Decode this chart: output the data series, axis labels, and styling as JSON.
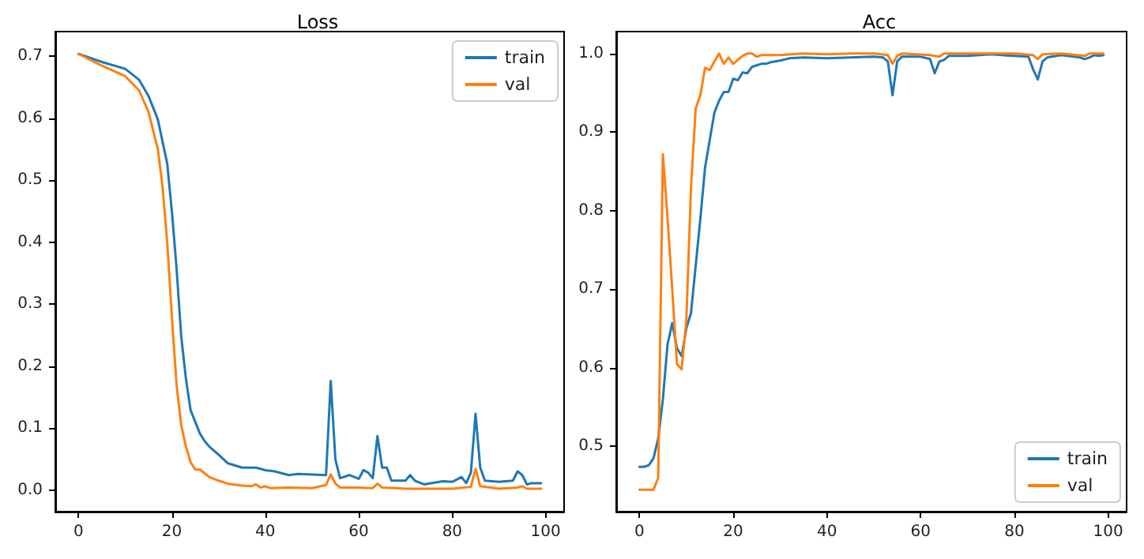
{
  "chart_data": [
    {
      "type": "line",
      "title": "Loss",
      "xlim": [
        -4.95,
        103.95
      ],
      "ylim": [
        -0.035,
        0.74
      ],
      "xticks": [
        0,
        20,
        40,
        60,
        80,
        100
      ],
      "yticks": [
        {
          "value": 0,
          "label": "0.0"
        },
        0.1,
        0.2,
        0.3,
        0.4,
        0.5,
        0.6,
        0.7
      ],
      "grid": false,
      "legend": "top right",
      "marker": "none",
      "line_style": "solid",
      "series": [
        {
          "name": "train",
          "color": "#1f77b4",
          "x": [
            0,
            5,
            10,
            13,
            15,
            17,
            19,
            20,
            21,
            22,
            23,
            24,
            26,
            27,
            28,
            30,
            32,
            35,
            38,
            40,
            42,
            45,
            47,
            50,
            53,
            54,
            55,
            56,
            58,
            60,
            61,
            62,
            63,
            64,
            65,
            66,
            67,
            70,
            71,
            72,
            74,
            78,
            80,
            82,
            83,
            84,
            85,
            86,
            87,
            90,
            93,
            94,
            95,
            96,
            97,
            99
          ],
          "values": [
            0.704,
            0.691,
            0.68,
            0.662,
            0.636,
            0.598,
            0.527,
            0.45,
            0.358,
            0.248,
            0.18,
            0.129,
            0.091,
            0.079,
            0.07,
            0.057,
            0.043,
            0.036,
            0.036,
            0.032,
            0.03,
            0.024,
            0.026,
            0.025,
            0.024,
            0.176,
            0.049,
            0.019,
            0.024,
            0.018,
            0.032,
            0.028,
            0.019,
            0.087,
            0.036,
            0.036,
            0.015,
            0.015,
            0.024,
            0.015,
            0.009,
            0.014,
            0.013,
            0.021,
            0.011,
            0.028,
            0.123,
            0.036,
            0.015,
            0.013,
            0.015,
            0.03,
            0.024,
            0.009,
            0.011,
            0.011
          ]
        },
        {
          "name": "val",
          "color": "#ff7f0e",
          "x": [
            0,
            5,
            10,
            13,
            15,
            17,
            18,
            19,
            20,
            21,
            22,
            23,
            24,
            25,
            26,
            27,
            28,
            30,
            32,
            35,
            37,
            38,
            39,
            40,
            41,
            45,
            50,
            53,
            54,
            55,
            56,
            60,
            63,
            64,
            65,
            70,
            80,
            84,
            85,
            86,
            90,
            94,
            95,
            96,
            99
          ],
          "values": [
            0.704,
            0.685,
            0.668,
            0.645,
            0.61,
            0.55,
            0.49,
            0.4,
            0.28,
            0.17,
            0.105,
            0.07,
            0.045,
            0.033,
            0.033,
            0.027,
            0.021,
            0.015,
            0.01,
            0.007,
            0.006,
            0.009,
            0.004,
            0.006,
            0.003,
            0.004,
            0.003,
            0.008,
            0.025,
            0.01,
            0.004,
            0.004,
            0.003,
            0.01,
            0.004,
            0.002,
            0.002,
            0.005,
            0.034,
            0.006,
            0.002,
            0.004,
            0.006,
            0.002,
            0.002
          ]
        }
      ]
    },
    {
      "type": "line",
      "title": "Acc",
      "xlim": [
        -4.95,
        103.95
      ],
      "ylim": [
        0.417,
        1.028
      ],
      "xticks": [
        0,
        20,
        40,
        60,
        80,
        100
      ],
      "yticks": [
        0.5,
        0.6,
        0.7,
        0.8,
        0.9,
        {
          "value": 1,
          "label": "1.0"
        }
      ],
      "grid": false,
      "legend": "bottom right",
      "marker": "none",
      "line_style": "solid",
      "series": [
        {
          "name": "train",
          "color": "#1f77b4",
          "x": [
            0,
            1,
            2,
            3,
            4,
            5,
            6,
            7,
            8,
            9,
            10,
            11,
            12,
            13,
            14,
            15,
            16,
            17,
            18,
            19,
            20,
            21,
            22,
            23,
            24,
            25,
            26,
            27,
            28,
            30,
            32,
            35,
            40,
            45,
            50,
            52,
            53,
            54,
            55,
            56,
            60,
            62,
            63,
            64,
            65,
            66,
            70,
            75,
            80,
            83,
            84,
            85,
            86,
            87,
            90,
            94,
            95,
            96,
            97,
            98,
            99
          ],
          "values": [
            0.474,
            0.474,
            0.476,
            0.485,
            0.51,
            0.56,
            0.63,
            0.657,
            0.625,
            0.615,
            0.65,
            0.67,
            0.73,
            0.79,
            0.855,
            0.89,
            0.925,
            0.94,
            0.951,
            0.951,
            0.968,
            0.966,
            0.976,
            0.975,
            0.983,
            0.985,
            0.987,
            0.987,
            0.989,
            0.991,
            0.994,
            0.995,
            0.994,
            0.995,
            0.996,
            0.995,
            0.99,
            0.947,
            0.99,
            0.996,
            0.996,
            0.993,
            0.975,
            0.99,
            0.992,
            0.997,
            0.997,
            0.999,
            0.997,
            0.996,
            0.98,
            0.967,
            0.99,
            0.995,
            0.998,
            0.995,
            0.993,
            0.995,
            0.998,
            0.997,
            0.998
          ]
        },
        {
          "name": "val",
          "color": "#ff7f0e",
          "x": [
            0,
            1,
            2,
            3,
            4,
            5,
            6,
            7,
            8,
            9,
            10,
            11,
            12,
            13,
            14,
            15,
            16,
            17,
            18,
            19,
            20,
            21,
            22,
            23,
            24,
            25,
            26,
            30,
            35,
            40,
            45,
            50,
            53,
            54,
            55,
            56,
            62,
            64,
            65,
            75,
            80,
            84,
            85,
            86,
            90,
            95,
            96,
            99
          ],
          "values": [
            0.445,
            0.445,
            0.445,
            0.445,
            0.46,
            0.872,
            0.79,
            0.7,
            0.605,
            0.598,
            0.66,
            0.83,
            0.93,
            0.947,
            0.982,
            0.979,
            0.99,
            1.0,
            0.987,
            0.995,
            0.987,
            0.992,
            0.997,
            1.0,
            1.0,
            0.996,
            0.998,
            0.998,
            1.0,
            0.999,
            1.0,
            1.0,
            0.998,
            0.987,
            0.997,
            1.0,
            0.998,
            0.996,
            1.0,
            1.0,
            1.0,
            0.998,
            0.993,
            0.999,
            1.0,
            0.997,
            1.0,
            1.0
          ]
        }
      ]
    }
  ]
}
